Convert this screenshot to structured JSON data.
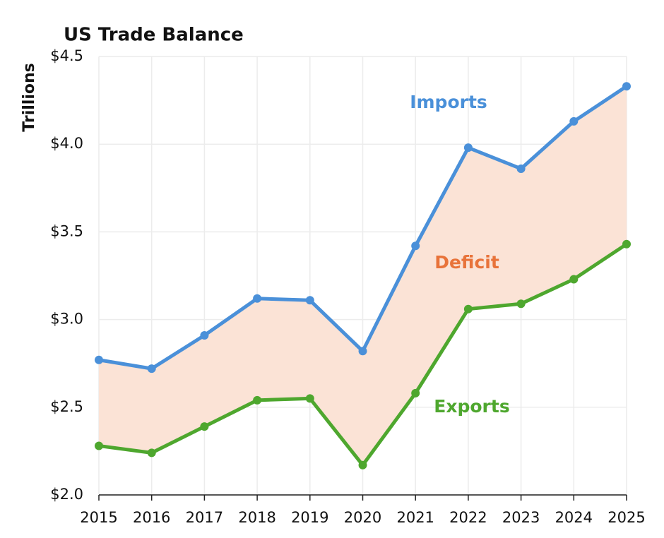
{
  "chart_data": {
    "type": "line",
    "title": "US Trade Balance",
    "y_label": "Trillions",
    "categories": [
      "2015",
      "2016",
      "2017",
      "2018",
      "2019",
      "2020",
      "2021",
      "2022",
      "2023",
      "2024",
      "2025"
    ],
    "series": [
      {
        "name": "Imports",
        "color": "#4a90d9",
        "values": [
          2.77,
          2.72,
          2.91,
          3.12,
          3.11,
          2.82,
          3.42,
          3.98,
          3.86,
          4.13,
          4.33
        ]
      },
      {
        "name": "Exports",
        "color": "#4ea72e",
        "values": [
          2.28,
          2.24,
          2.39,
          2.54,
          2.55,
          2.17,
          2.58,
          3.06,
          3.09,
          3.23,
          3.43
        ]
      }
    ],
    "fill_between": {
      "name": "Deficit",
      "color": "#fbe3d6",
      "label_color": "#e8733a"
    },
    "ylim": [
      2.0,
      4.5
    ],
    "yticks": [
      {
        "value": 2.0,
        "label": "$2.0"
      },
      {
        "value": 2.5,
        "label": "$2.5"
      },
      {
        "value": 3.0,
        "label": "$3.0"
      },
      {
        "value": 3.5,
        "label": "$3.5"
      },
      {
        "value": 4.0,
        "label": "$4.0"
      },
      {
        "value": 4.5,
        "label": "$4.5"
      }
    ],
    "grid": true
  }
}
